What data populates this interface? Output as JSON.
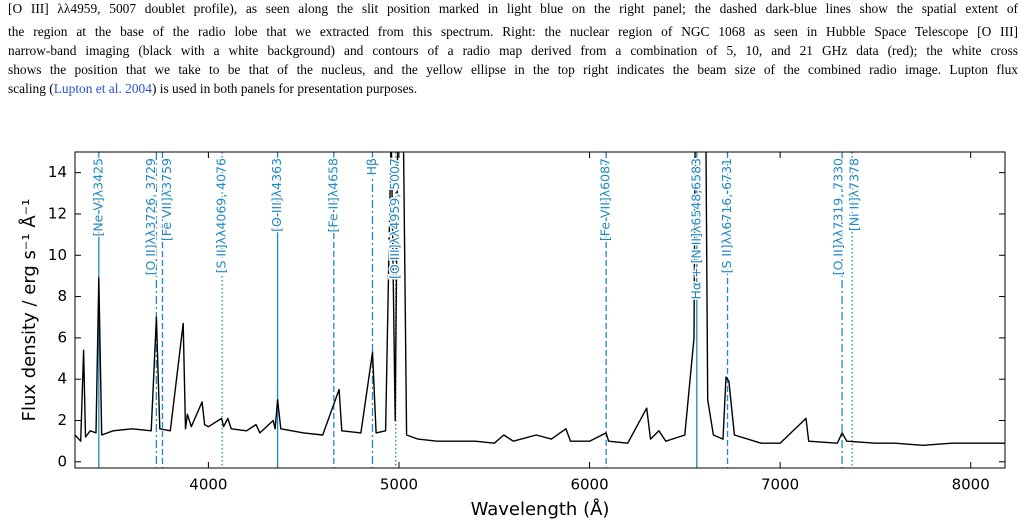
{
  "caption": {
    "lines": [
      "[O III] λλ4959, 5007 doublet profile), as seen along the slit position marked in light blue on the right panel; the dashed dark-blue lines show the spatial extent of",
      "the region at the base of the radio lobe that we extracted from this spectrum. Right: the nuclear region of NGC 1068 as seen in Hubble Space Telescope [O III]",
      "narrow-band imaging (black with a white background) and contours of a radio map derived from a combination of 5, 10, and 21 GHz data (red); the white cross",
      "shows the position that we take to be that of the nucleus, and the yellow ellipse in the top right indicates the beam size of the combined radio image. Lupton flux"
    ],
    "last_line": {
      "before": "scaling (",
      "link": "Lupton et al. 2004",
      "after": ") is used in both panels for presentation purposes."
    }
  },
  "chart_data": {
    "type": "line",
    "xlabel": "Wavelength (Å)",
    "ylabel": "Flux density / erg s⁻¹ Å⁻¹",
    "xlim": [
      3300,
      8180
    ],
    "ylim": [
      -0.3,
      15
    ],
    "xticks": [
      4000,
      5000,
      6000,
      7000,
      8000
    ],
    "yticks": [
      0,
      2,
      4,
      6,
      8,
      10,
      12,
      14
    ],
    "color": "#000000",
    "annotation_color": "#1f88c4",
    "x": [
      3300,
      3330,
      3345,
      3355,
      3380,
      3410,
      3425,
      3440,
      3500,
      3600,
      3700,
      3727,
      3745,
      3800,
      3868,
      3880,
      3890,
      3910,
      3967,
      3980,
      4000,
      4069,
      4080,
      4102,
      4120,
      4200,
      4250,
      4270,
      4340,
      4350,
      4363,
      4380,
      4500,
      4600,
      4686,
      4700,
      4800,
      4861,
      4880,
      4930,
      4959,
      4980,
      5007,
      5040,
      5100,
      5200,
      5300,
      5400,
      5500,
      5550,
      5600,
      5720,
      5800,
      5876,
      5900,
      6000,
      6087,
      6100,
      6200,
      6300,
      6320,
      6364,
      6400,
      6500,
      6548,
      6563,
      6600,
      6620,
      6650,
      6700,
      6716,
      6731,
      6760,
      6900,
      7000,
      7136,
      7150,
      7300,
      7325,
      7350,
      7500,
      7600,
      7750,
      7900,
      8000,
      8100,
      8180
    ],
    "values": [
      1.3,
      1.0,
      5.4,
      1.2,
      1.5,
      1.4,
      8.9,
      1.3,
      1.5,
      1.6,
      1.5,
      7.0,
      1.6,
      1.5,
      6.7,
      1.6,
      2.3,
      1.7,
      2.9,
      1.8,
      1.7,
      2.1,
      1.7,
      2.1,
      1.6,
      1.5,
      1.8,
      1.4,
      2.0,
      1.6,
      3.0,
      1.6,
      1.4,
      1.3,
      3.5,
      1.5,
      1.4,
      5.3,
      1.4,
      1.5,
      16,
      2.0,
      30,
      1.3,
      1.1,
      1.0,
      1.0,
      1.0,
      0.9,
      1.3,
      1.0,
      1.3,
      1.1,
      1.6,
      1.0,
      1.0,
      1.4,
      1.0,
      0.9,
      2.6,
      1.1,
      1.5,
      1.0,
      1.3,
      6,
      30,
      30,
      3,
      1.3,
      1.1,
      4.1,
      3.9,
      1.3,
      0.9,
      0.9,
      2.1,
      1.0,
      0.9,
      1.4,
      1.0,
      0.9,
      0.9,
      0.8,
      0.9,
      0.9,
      0.9,
      0.9
    ],
    "annotations": [
      {
        "x": 3425,
        "label": "[Ne V]λ3425",
        "style": "solid"
      },
      {
        "x": 3727,
        "label": "[O II]λλ3726, 3729",
        "style": "dashdot"
      },
      {
        "x": 3759,
        "label": "[Fe VII]λ3759",
        "style": "dashed"
      },
      {
        "x": 4072,
        "label": "[S II]λλ4069, 4076",
        "style": "dotted"
      },
      {
        "x": 4363,
        "label": "[O III]λ4363",
        "style": "solid"
      },
      {
        "x": 4658,
        "label": "[Fe II]λ4658",
        "style": "dashed"
      },
      {
        "x": 4861,
        "label": "Hβ",
        "style": "dashdot"
      },
      {
        "x": 4983,
        "label": "[O III]λλ4959, 5007",
        "style": "dotted"
      },
      {
        "x": 6087,
        "label": "[Fe VII]λ6087",
        "style": "dashed"
      },
      {
        "x": 6563,
        "label": "Hα + [N II]λ6548,6583",
        "style": "solid"
      },
      {
        "x": 6724,
        "label": "[S II]λλ6716, 6731",
        "style": "dashed"
      },
      {
        "x": 7325,
        "label": "[O II]λλ7319, 7330",
        "style": "dashdot"
      },
      {
        "x": 7378,
        "label": "[Ni II]λ7378",
        "style": "dotted"
      }
    ]
  }
}
